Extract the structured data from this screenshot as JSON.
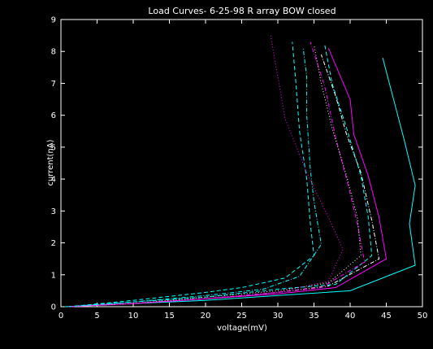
{
  "chart_data": {
    "type": "line",
    "title": "Load Curves- 6-25-98 R array BOW closed",
    "xlabel": "voltage(mV)",
    "ylabel": "current(nA)",
    "xlim": [
      0,
      50
    ],
    "ylim": [
      0,
      9
    ],
    "x_ticks": [
      "0",
      "5",
      "10",
      "15",
      "20",
      "25",
      "30",
      "35",
      "40",
      "45",
      "50"
    ],
    "y_ticks": [
      "0",
      "1",
      "2",
      "3",
      "4",
      "5",
      "6",
      "7",
      "8",
      "9"
    ],
    "grid": false,
    "series": [
      {
        "color": "#00ffff",
        "dash": "solid",
        "points": [
          [
            0.5,
            0
          ],
          [
            10,
            0.1
          ],
          [
            20,
            0.2
          ],
          [
            30,
            0.35
          ],
          [
            40,
            0.5
          ],
          [
            49,
            1.3
          ],
          [
            48.2,
            2.6
          ],
          [
            49,
            3.8
          ],
          [
            47.5,
            5.2
          ],
          [
            44.5,
            7.8
          ]
        ]
      },
      {
        "color": "#ff00ff",
        "dash": "solid",
        "points": [
          [
            1,
            0
          ],
          [
            10,
            0.1
          ],
          [
            20,
            0.25
          ],
          [
            30,
            0.4
          ],
          [
            38,
            0.6
          ],
          [
            45,
            1.5
          ],
          [
            44,
            2.8
          ],
          [
            42.5,
            4.1
          ],
          [
            40.5,
            5.4
          ],
          [
            40,
            6.5
          ],
          [
            37,
            8.1
          ]
        ]
      },
      {
        "color": "#ffffff",
        "dash": "dashdot",
        "points": [
          [
            1,
            0
          ],
          [
            10,
            0.1
          ],
          [
            20,
            0.25
          ],
          [
            30,
            0.45
          ],
          [
            37,
            0.65
          ],
          [
            44,
            1.5
          ],
          [
            43,
            2.7
          ],
          [
            41.5,
            4.2
          ],
          [
            39.5,
            5.4
          ],
          [
            38,
            6.6
          ],
          [
            36,
            7.9
          ]
        ]
      },
      {
        "color": "#00ffff",
        "dash": "dashed",
        "points": [
          [
            1,
            0
          ],
          [
            10,
            0.15
          ],
          [
            20,
            0.3
          ],
          [
            30,
            0.55
          ],
          [
            38,
            0.7
          ],
          [
            43,
            1.6
          ],
          [
            42.5,
            2.8
          ],
          [
            41.5,
            4.1
          ],
          [
            39.5,
            5.6
          ],
          [
            37.5,
            7
          ],
          [
            36.5,
            8.2
          ]
        ]
      },
      {
        "color": "#ff00ff",
        "dash": "dashdot",
        "points": [
          [
            1,
            0
          ],
          [
            10,
            0.1
          ],
          [
            20,
            0.25
          ],
          [
            30,
            0.45
          ],
          [
            36,
            0.6
          ],
          [
            42,
            1.4
          ],
          [
            41,
            2.6
          ],
          [
            39.5,
            4
          ],
          [
            38,
            5.3
          ],
          [
            36.5,
            6.9
          ],
          [
            34.5,
            8.3
          ]
        ]
      },
      {
        "color": "#ffffff",
        "dash": "dotted",
        "points": [
          [
            1,
            0
          ],
          [
            10,
            0.1
          ],
          [
            20,
            0.3
          ],
          [
            30,
            0.5
          ],
          [
            37,
            0.75
          ],
          [
            41.5,
            1.6
          ],
          [
            41,
            2.8
          ],
          [
            39.5,
            4.1
          ],
          [
            37.5,
            5.6
          ],
          [
            36,
            7
          ],
          [
            35,
            8.2
          ]
        ]
      },
      {
        "color": "#00ffff",
        "dash": "dashdot",
        "points": [
          [
            1,
            0
          ],
          [
            10,
            0.15
          ],
          [
            20,
            0.35
          ],
          [
            28,
            0.55
          ],
          [
            33,
            0.95
          ],
          [
            36,
            1.95
          ],
          [
            35,
            3.3
          ],
          [
            34.5,
            4.3
          ],
          [
            34,
            6
          ],
          [
            34,
            7.2
          ],
          [
            33.5,
            8.1
          ]
        ]
      },
      {
        "color": "#00ffff",
        "dash": "dashed",
        "points": [
          [
            1,
            0
          ],
          [
            10,
            0.2
          ],
          [
            20,
            0.45
          ],
          [
            25,
            0.6
          ],
          [
            31,
            0.9
          ],
          [
            35,
            1.6
          ],
          [
            34.5,
            2.6
          ],
          [
            34,
            4
          ],
          [
            33,
            5.5
          ],
          [
            32.5,
            7
          ],
          [
            32,
            8.3
          ]
        ]
      },
      {
        "color": "#ff00ff",
        "dotted": true,
        "dash": "dotted",
        "points": [
          [
            1,
            0
          ],
          [
            10,
            0.1
          ],
          [
            20,
            0.25
          ],
          [
            30,
            0.45
          ],
          [
            37,
            0.8
          ],
          [
            39,
            1.8
          ],
          [
            37,
            2.8
          ],
          [
            34,
            4.2
          ],
          [
            31,
            5.9
          ],
          [
            30,
            7.2
          ],
          [
            29,
            8.5
          ]
        ]
      }
    ]
  }
}
